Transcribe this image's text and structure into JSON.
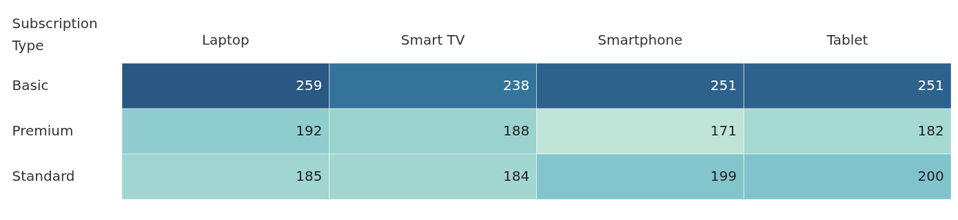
{
  "chart_data": {
    "type": "heatmap",
    "data_labels": true,
    "ylabel": "Subscription Type",
    "categories": [
      "Laptop",
      "Smart TV",
      "Smartphone",
      "Tablet"
    ],
    "y_categories": [
      "Basic",
      "Premium",
      "Standard"
    ],
    "cells": [
      [
        259,
        238,
        251,
        251
      ],
      [
        192,
        188,
        171,
        182
      ],
      [
        185,
        184,
        199,
        200
      ]
    ]
  }
}
